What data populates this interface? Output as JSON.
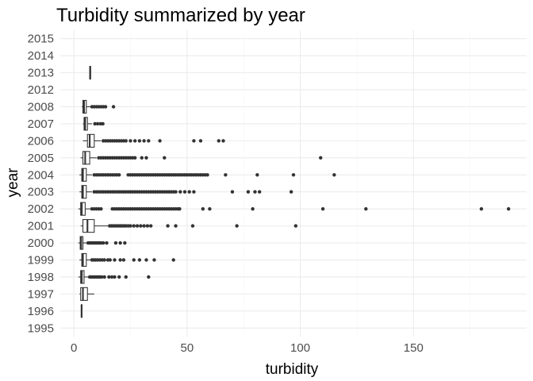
{
  "chart_data": {
    "type": "boxplot",
    "orientation": "horizontal",
    "title": "Turbidity summarized by year",
    "xlabel": "turbidity",
    "ylabel": "year",
    "xlim": [
      -6,
      200
    ],
    "x_ticks": [
      0,
      50,
      100,
      150
    ],
    "grid": true,
    "categories": [
      "1995",
      "1996",
      "1997",
      "1998",
      "1999",
      "2000",
      "2001",
      "2002",
      "2003",
      "2004",
      "2005",
      "2006",
      "2007",
      "2008",
      "2012",
      "2013",
      "2014",
      "2015"
    ],
    "boxes": [
      {
        "year": "1995",
        "stats": null,
        "outliers": []
      },
      {
        "year": "1996",
        "stats": [
          3.2,
          3.3,
          3.4,
          3.6,
          3.7
        ],
        "outliers": []
      },
      {
        "year": "1997",
        "stats": [
          2.5,
          3,
          4,
          6,
          9
        ],
        "outliers": []
      },
      {
        "year": "1998",
        "stats": [
          2,
          3,
          3.5,
          4.5,
          6.5
        ],
        "outliers": [
          7,
          7.8,
          8.5,
          9.2,
          10,
          10.8,
          11.5,
          12.3,
          13.5,
          15.5,
          16.8,
          18,
          20,
          23,
          33
        ]
      },
      {
        "year": "1999",
        "stats": [
          2.5,
          3.5,
          4,
          5.5,
          7.5
        ],
        "outliers": [
          8,
          8.8,
          9.6,
          10.5,
          11.5,
          12.5,
          13.5,
          15,
          16,
          18,
          20.5,
          22,
          26.5,
          29,
          32,
          35.5,
          44
        ]
      },
      {
        "year": "2000",
        "stats": [
          2,
          2.8,
          3.2,
          4,
          5.8
        ],
        "outliers": [
          6.3,
          7,
          7.7,
          8.4,
          9.1,
          9.8,
          10.5,
          11.2,
          12,
          13,
          14.5,
          18.5,
          20.5,
          22.5
        ]
      },
      {
        "year": "2001",
        "stats": [
          3,
          4,
          6,
          9,
          15
        ],
        "outliers": [
          15.8,
          16.6,
          17.4,
          18.2,
          19,
          19.8,
          20.6,
          21.4,
          22.2,
          23,
          24,
          25,
          26.5,
          28,
          29.5,
          31,
          32.5,
          34,
          41.5,
          45,
          52.5,
          72,
          98
        ]
      },
      {
        "year": "2002",
        "stats": [
          2,
          3,
          3.5,
          5,
          7.5
        ],
        "outliers": [
          8,
          9,
          10,
          11,
          12,
          17,
          18,
          19,
          20,
          21,
          22,
          23,
          24,
          25,
          26,
          27,
          28,
          29,
          30,
          31,
          32,
          33,
          34,
          35,
          36,
          37,
          38,
          39,
          40,
          41,
          42,
          43,
          44,
          45,
          46,
          46.7,
          57,
          60,
          79,
          110,
          129,
          180,
          192
        ]
      },
      {
        "year": "2003",
        "stats": [
          2.5,
          3.5,
          4,
          5.5,
          8
        ],
        "outliers": [
          9,
          10,
          11,
          12,
          13,
          14,
          15,
          16,
          17,
          18,
          19,
          20,
          21,
          22,
          23,
          24,
          25,
          26,
          27,
          28,
          29,
          30,
          31,
          32,
          33,
          34,
          35,
          36,
          37,
          38,
          39,
          40,
          41,
          42,
          43,
          44,
          45,
          47,
          49,
          51,
          53,
          70,
          77,
          80,
          82,
          96
        ]
      },
      {
        "year": "2004",
        "stats": [
          2.5,
          3.5,
          4,
          5.5,
          8
        ],
        "outliers": [
          9,
          10,
          11,
          12,
          13,
          14,
          15,
          16,
          17,
          18,
          19,
          20,
          24,
          25,
          26,
          27,
          28,
          29,
          30,
          31,
          32,
          33,
          34,
          35,
          36,
          37,
          38,
          39,
          40,
          41,
          42,
          43,
          44,
          45,
          46,
          47,
          48,
          49,
          50,
          51,
          52,
          53,
          54,
          55,
          56,
          57,
          58,
          59,
          67,
          81,
          97,
          115
        ]
      },
      {
        "year": "2005",
        "stats": [
          3,
          4,
          5,
          7,
          10
        ],
        "outliers": [
          11,
          12,
          13,
          14,
          15,
          16,
          17,
          18,
          19,
          20,
          21,
          22,
          23,
          24,
          25,
          26,
          27,
          30,
          32,
          40,
          109
        ]
      },
      {
        "year": "2006",
        "stats": [
          4,
          6,
          7,
          9,
          12
        ],
        "outliers": [
          13,
          14,
          15,
          16,
          17,
          18,
          19,
          20,
          21,
          22,
          23,
          25,
          27,
          29,
          31,
          33,
          38,
          53,
          56,
          64,
          66
        ]
      },
      {
        "year": "2007",
        "stats": [
          4,
          4.5,
          5,
          6,
          8
        ],
        "outliers": [
          9.3,
          10.5,
          11.8,
          12.8
        ]
      },
      {
        "year": "2008",
        "stats": [
          3.5,
          4,
          4.5,
          5.5,
          7.5
        ],
        "outliers": [
          8,
          9,
          10,
          11,
          12,
          13,
          14,
          17.5
        ]
      },
      {
        "year": "2012",
        "stats": null,
        "outliers": []
      },
      {
        "year": "2013",
        "stats": [
          7,
          7,
          7.2,
          7.4,
          7.4
        ],
        "outliers": []
      },
      {
        "year": "2014",
        "stats": null,
        "outliers": []
      },
      {
        "year": "2015",
        "stats": null,
        "outliers": []
      }
    ]
  }
}
